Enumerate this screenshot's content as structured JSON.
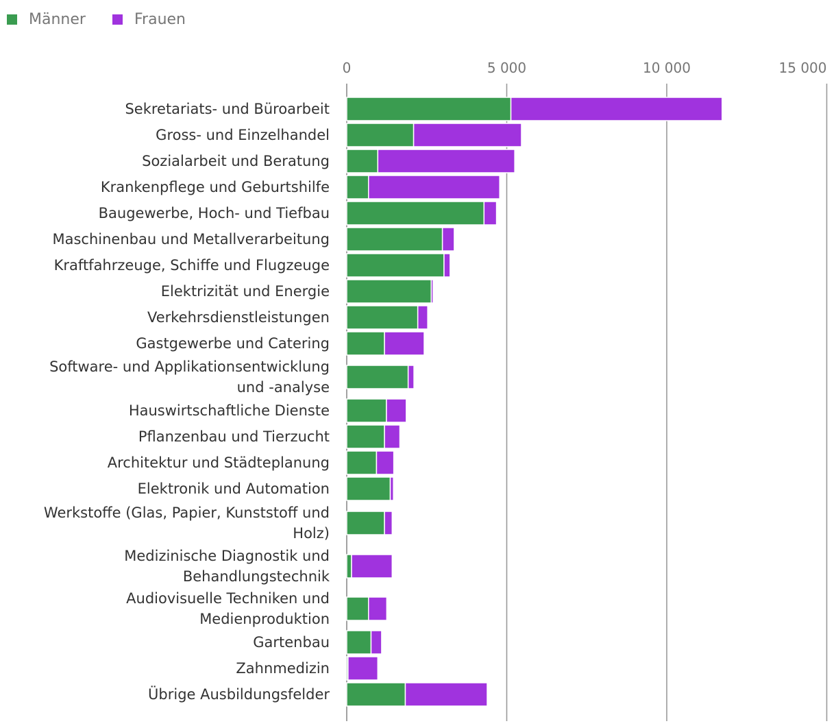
{
  "chart_data": {
    "type": "bar",
    "orientation": "horizontal",
    "stacked": true,
    "legend_position": "top-left",
    "grid": true,
    "xlim": [
      0,
      15000
    ],
    "x_ticks": [
      0,
      5000,
      10000,
      15000
    ],
    "x_tick_labels": [
      "0",
      "5 000",
      "10 000",
      "15 000"
    ],
    "categories": [
      "Sekretariats- und Büroarbeit",
      "Gross- und Einzelhandel",
      "Sozialarbeit und Beratung",
      "Krankenpflege und Geburtshilfe",
      "Baugewerbe, Hoch- und Tiefbau",
      "Maschinenbau und Metallverarbeitung",
      "Kraftfahrzeuge, Schiffe und Flugzeuge",
      "Elektrizität und Energie",
      "Verkehrsdienstleistungen",
      "Gastgewerbe und Catering",
      "Software- und Applikationsentwicklung und -analyse",
      "Hauswirtschaftliche Dienste",
      "Pflanzenbau und Tierzucht",
      "Architektur und Städteplanung",
      "Elektronik und Automation",
      "Werkstoffe (Glas, Papier, Kunststoff und Holz)",
      "Medizinische Diagnostik und Behandlungstechnik",
      "Audiovisuelle Techniken und Medienproduktion",
      "Gartenbau",
      "Zahnmedizin",
      "Übrige Ausbildungsfelder"
    ],
    "category_lines": [
      [
        "Sekretariats- und Büroarbeit"
      ],
      [
        "Gross- und Einzelhandel"
      ],
      [
        "Sozialarbeit und Beratung"
      ],
      [
        "Krankenpflege und Geburtshilfe"
      ],
      [
        "Baugewerbe, Hoch- und Tiefbau"
      ],
      [
        "Maschinenbau und Metallverarbeitung"
      ],
      [
        "Kraftfahrzeuge, Schiffe und Flugzeuge"
      ],
      [
        "Elektrizität und Energie"
      ],
      [
        "Verkehrsdienstleistungen"
      ],
      [
        "Gastgewerbe und Catering"
      ],
      [
        "Software- und Applikationsentwicklung",
        "und -analyse"
      ],
      [
        "Hauswirtschaftliche Dienste"
      ],
      [
        "Pflanzenbau und Tierzucht"
      ],
      [
        "Architektur und Städteplanung"
      ],
      [
        "Elektronik und Automation"
      ],
      [
        "Werkstoffe (Glas, Papier, Kunststoff und",
        "Holz)"
      ],
      [
        "Medizinische Diagnostik und",
        "Behandlungstechnik"
      ],
      [
        "Audiovisuelle Techniken und",
        "Medienproduktion"
      ],
      [
        "Gartenbau"
      ],
      [
        "Zahnmedizin"
      ],
      [
        "Übrige Ausbildungsfelder"
      ]
    ],
    "series": [
      {
        "name": "Männer",
        "color": "#3a9c50",
        "values": [
          5130,
          2090,
          970,
          680,
          4290,
          2990,
          3040,
          2640,
          2220,
          1180,
          1920,
          1240,
          1180,
          930,
          1360,
          1180,
          150,
          680,
          760,
          40,
          1830
        ]
      },
      {
        "name": "Frauen",
        "color": "#a033de",
        "values": [
          6600,
          3370,
          4280,
          4100,
          390,
          370,
          190,
          60,
          310,
          1240,
          180,
          620,
          480,
          540,
          100,
          240,
          1270,
          570,
          330,
          930,
          2560
        ]
      }
    ]
  }
}
